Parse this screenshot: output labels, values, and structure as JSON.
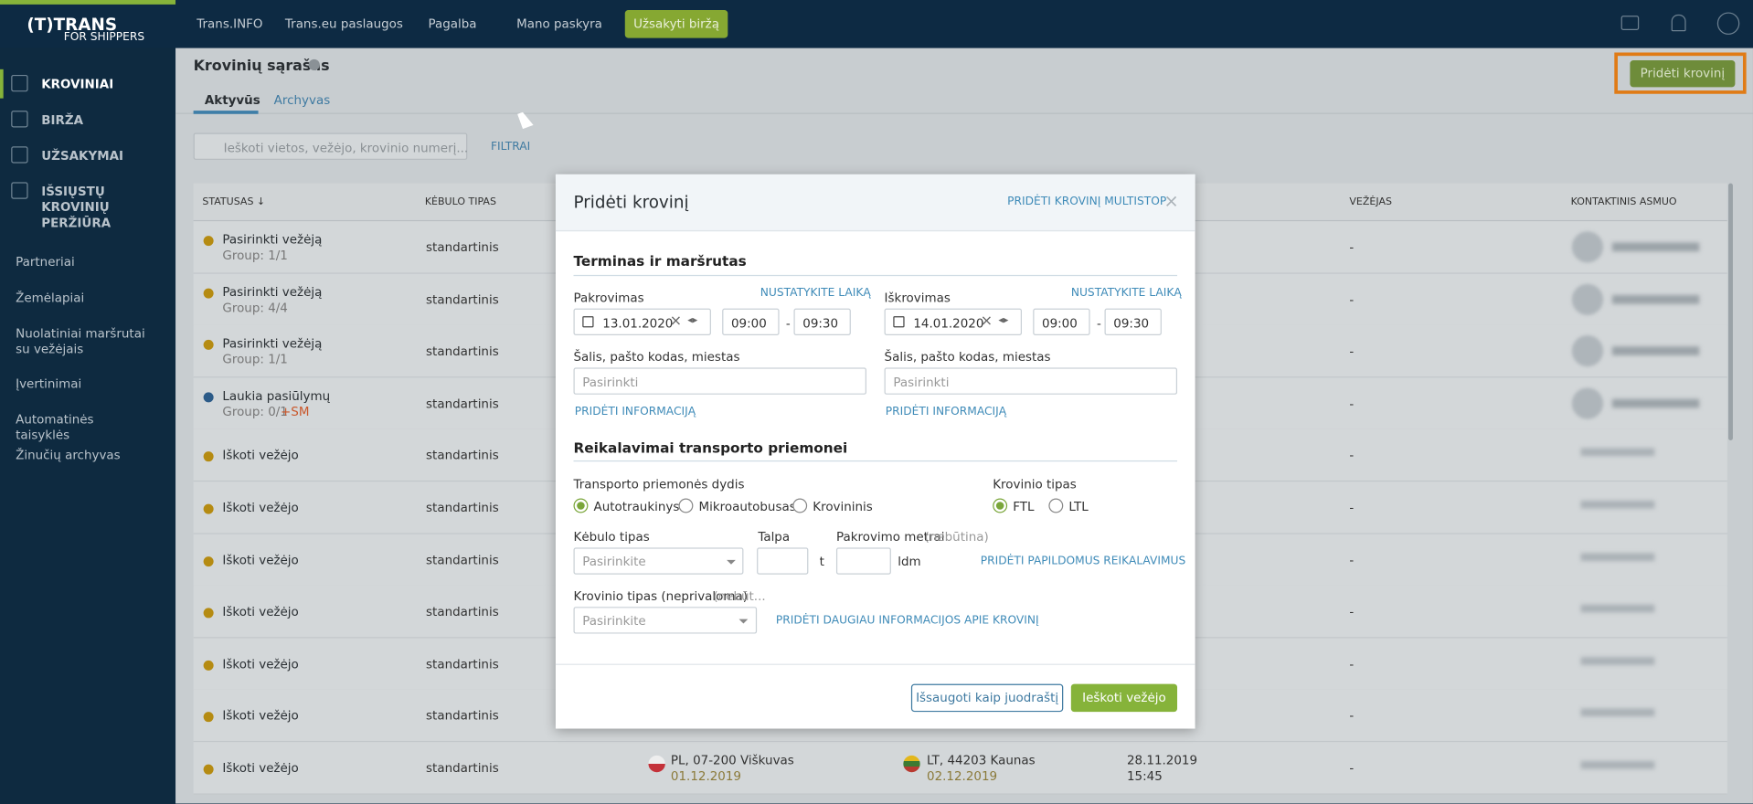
{
  "topbar": {
    "logo_top": "(T)TRANS",
    "logo_bottom": "FOR SHIPPERS",
    "nav": [
      "Trans.INFO",
      "Trans.eu paslaugos",
      "Pagalba",
      "Mano paskyra"
    ],
    "cta": "Užsakyti biržą"
  },
  "sidebar": {
    "main": [
      "KROVINIAI",
      "BIRŽA",
      "UŽSAKYMAI",
      "IŠSIŲSTŲ KROVINIŲ PERŽIŪRA"
    ],
    "secondary": [
      "Partneriai",
      "Žemėlapiai",
      "Nuolatiniai maršrutai su vežėjais",
      "Įvertinimai",
      "Automatinės taisyklės",
      "Žinučių archyvas"
    ]
  },
  "page": {
    "title": "Krovinių sąrašas",
    "tabs": [
      "Aktyvūs",
      "Archyvas"
    ],
    "add_button": "Pridėti krovinį",
    "search_placeholder": "Ieškoti vietos, vežėjo, krovinio numerį...",
    "filters": "FILTRAI"
  },
  "table": {
    "columns": {
      "status": "STATUSAS ↓",
      "body": "KĖBULO TIPAS",
      "carrier": "VEŽĖJAS",
      "contact": "KONTAKTINIS ASMUO"
    },
    "rows": [
      {
        "status": "Pasirinkti vežėją",
        "group": "Group: 1/1",
        "body": "standartinis",
        "carrier": "-"
      },
      {
        "status": "Pasirinkti vežėją",
        "group": "Group: 4/4",
        "body": "standartinis",
        "carrier": "-"
      },
      {
        "status": "Pasirinkti vežėją",
        "group": "Group: 1/1",
        "body": "standartinis",
        "carrier": "-"
      },
      {
        "status": "Laukia pasiūlymų",
        "group": "Group: 0/1",
        "tag": "+SM",
        "body": "standartinis",
        "carrier": "-"
      },
      {
        "status": "Iškoti vežėjo",
        "body": "standartinis",
        "carrier": "-"
      },
      {
        "status": "Iškoti vežėjo",
        "body": "standartinis",
        "carrier": "-"
      },
      {
        "status": "Iškoti vežėjo",
        "body": "standartinis",
        "carrier": "-"
      },
      {
        "status": "Iškoti vežėjo",
        "body": "standartinis",
        "carrier": "-"
      },
      {
        "status": "Iškoti vežėjo",
        "body": "standartinis",
        "carrier": "-"
      },
      {
        "status": "Iškoti vežėjo",
        "body": "standartinis",
        "carrier": "-"
      },
      {
        "status": "Iškoti vežėjo",
        "body": "standartinis",
        "carrier": "-",
        "loading": "PL, 07-200 Viškuvas",
        "loading_date": "01.12.2019",
        "unloading": "LT, 44203 Kaunas",
        "unloading_date": "02.12.2019",
        "date": "28.11.2019",
        "time": "15:45"
      }
    ]
  },
  "modal": {
    "title": "Pridėti krovinį",
    "multistop": "PRIDĖTI KROVINĮ MULTISTOP",
    "section_route": "Terminas ir maršrutas",
    "loading": {
      "label": "Pakrovimas",
      "set_time": "NUSTATYKITE LAIKĄ",
      "date": "13.01.2020",
      "time_from": "09:00",
      "time_to": "09:30",
      "place_label": "Šalis, pašto kodas, miestas",
      "place_placeholder": "Pasirinkti",
      "add_info": "PRIDĖTI INFORMACIJĄ"
    },
    "unloading": {
      "label": "Iškrovimas",
      "set_time": "NUSTATYKITE LAIKĄ",
      "date": "14.01.2020",
      "time_from": "09:00",
      "time_to": "09:30",
      "place_label": "Šalis, pašto kodas, miestas",
      "place_placeholder": "Pasirinkti",
      "add_info": "PRIDĖTI INFORMACIJĄ"
    },
    "time_separator": "-",
    "section_vehicle": "Reikalavimai transporto priemonei",
    "vehicle_size_label": "Transporto priemonės dydis",
    "vehicle_sizes": [
      "Autotraukinys",
      "Mikroautobusas",
      "Krovininis"
    ],
    "cargo_type_label": "Krovinio tipas",
    "cargo_types": [
      "FTL",
      "LTL"
    ],
    "body_label": "Kėbulo tipas",
    "body_placeholder": "Pasirinkite",
    "capacity_label": "Talpa",
    "capacity_unit": "t",
    "ldm_label": "Pakrovimo metrai",
    "ldm_optional": "(nebūtina)",
    "ldm_unit": "ldm",
    "add_requirements": "PRIDĖTI PAPILDOMUS REIKALAVIMUS",
    "cargo_kind_label": "Krovinio tipas (neprivaloma)",
    "cargo_kind_optional": "(nebūt...",
    "cargo_kind_placeholder": "Pasirinkite",
    "add_cargo_info": "PRIDĖTI DAUGIAU INFORMACIJOS APIE KROVINĮ",
    "save_draft": "Išsaugoti kaip juodraštį",
    "search_carrier": "Ieškoti vežėjo"
  }
}
